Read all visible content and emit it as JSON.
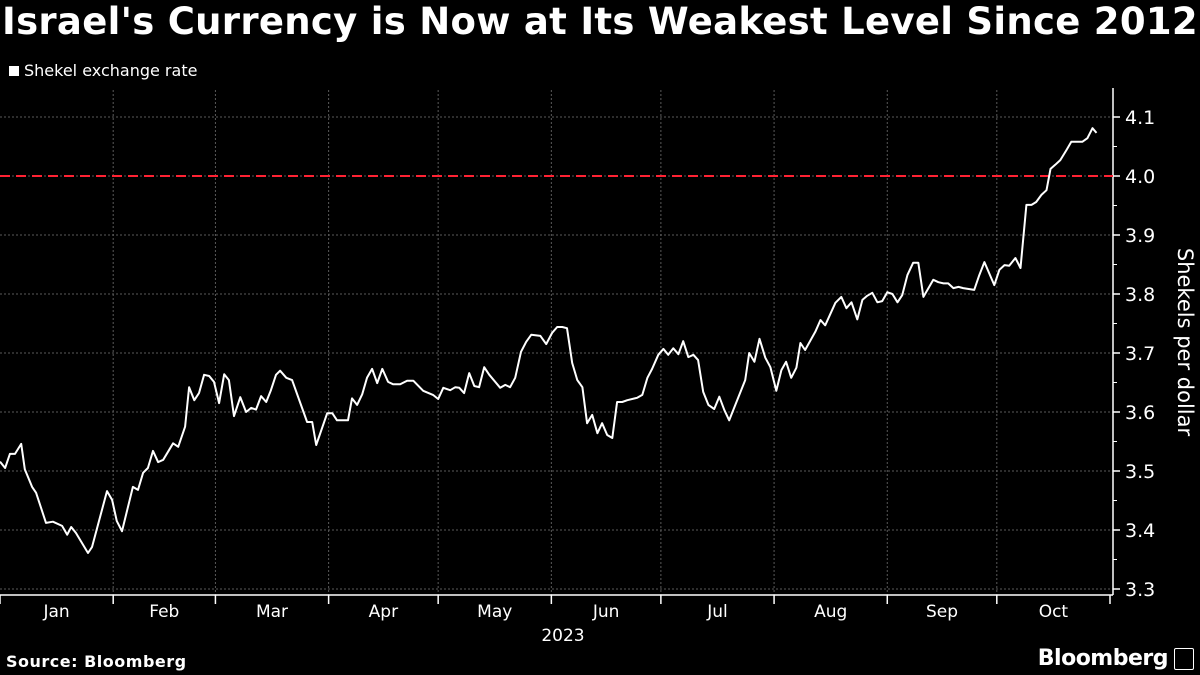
{
  "chart_data": {
    "type": "line",
    "title": "Israel's Currency is Now at Its Weakest Level Since 2012",
    "legend": [
      "Shekel exchange rate"
    ],
    "legend_placement": "top-left",
    "xlabel": "2023",
    "ylabel": "Shekels per dollar",
    "x_unit": "days since Jan 1 2023",
    "xlim": [
      0,
      304
    ],
    "ylim": [
      3.3,
      4.12
    ],
    "yticks": [
      3.3,
      3.4,
      3.5,
      3.6,
      3.7,
      3.8,
      3.9,
      4.0,
      4.1
    ],
    "ytick_labels": [
      "3.3",
      "3.4",
      "3.5",
      "3.6",
      "3.7",
      "3.8",
      "3.9",
      "4.0",
      "4.1"
    ],
    "month_starts": [
      0,
      31,
      59,
      90,
      120,
      151,
      181,
      212,
      243,
      273,
      304
    ],
    "xtick_labels": [
      "Jan",
      "Feb",
      "Mar",
      "Apr",
      "May",
      "Jun",
      "Jul",
      "Aug",
      "Sep",
      "Oct"
    ],
    "reference_line": {
      "value": 4.0,
      "style": "dashed",
      "color": "#ff2233"
    },
    "grid": true,
    "series": [
      {
        "name": "Shekel exchange rate",
        "color": "#ffffff",
        "x": [
          0,
          1.4,
          2.7,
          4.1,
          5.8,
          6.8,
          8.8,
          9.9,
          12.6,
          14.5,
          17,
          18.4,
          19.5,
          20.8,
          24.1,
          25.2,
          29.3,
          30.7,
          32,
          33.4,
          36.4,
          37.8,
          39.2,
          40.5,
          41.9,
          43.3,
          44.7,
          47.4,
          48.8,
          50.7,
          51.8,
          53.2,
          54.5,
          55.9,
          57.3,
          58.6,
          60,
          61.4,
          62.7,
          64.1,
          65.8,
          67.4,
          68.8,
          70.1,
          71.5,
          72.9,
          74.2,
          75.6,
          76.7,
          78.4,
          80,
          84.1,
          85.5,
          86.6,
          89.6,
          91,
          92.3,
          95.3,
          96.4,
          97.8,
          99.2,
          100.5,
          101.9,
          103.3,
          104.7,
          106.3,
          107.7,
          109.6,
          111.5,
          113.2,
          115.9,
          118.6,
          120,
          121.4,
          123.3,
          124.7,
          125.8,
          127.1,
          128.5,
          129.9,
          131.2,
          132.6,
          134,
          137,
          138.4,
          139.7,
          141.1,
          142.7,
          144.1,
          145.5,
          148,
          149.6,
          151.2,
          152.6,
          154,
          155.3,
          156.7,
          158.1,
          159.5,
          160.8,
          162.2,
          163.6,
          164.9,
          166.3,
          167.7,
          169,
          170.4,
          171.8,
          174.5,
          175.9,
          177.3,
          178.6,
          180.3,
          181.7,
          183,
          184.4,
          185.8,
          187.1,
          188.5,
          189.9,
          191.2,
          192.6,
          194,
          195.6,
          197,
          198.4,
          199.7,
          204.1,
          205.2,
          206.6,
          208,
          209.6,
          211,
          212.6,
          214,
          215.3,
          216.7,
          218.1,
          219.2,
          220.5,
          223.3,
          224.7,
          226,
          228.8,
          230.4,
          231.8,
          233.2,
          234.8,
          236.2,
          237.5,
          238.9,
          240.3,
          241.6,
          243,
          244.4,
          245.8,
          247.1,
          248.5,
          250.1,
          251.5,
          252.9,
          255.6,
          257,
          258.4,
          259.7,
          261.1,
          262.5,
          263.8,
          266.8,
          268.2,
          269.6,
          272.3,
          273.7,
          275.1,
          276.4,
          278.1,
          279.5,
          281.1,
          282.5,
          283.8,
          285.2,
          286.6,
          287.7,
          289,
          290.4,
          292.1,
          293.4,
          295.1,
          296.4,
          297.8,
          299.2,
          300.3
        ],
        "values": [
          3.516,
          3.505,
          3.529,
          3.529,
          3.546,
          3.503,
          3.473,
          3.463,
          3.412,
          3.414,
          3.407,
          3.392,
          3.405,
          3.395,
          3.361,
          3.371,
          3.466,
          3.451,
          3.415,
          3.398,
          3.473,
          3.468,
          3.497,
          3.505,
          3.534,
          3.515,
          3.519,
          3.547,
          3.541,
          3.575,
          3.642,
          3.62,
          3.632,
          3.663,
          3.661,
          3.651,
          3.615,
          3.664,
          3.654,
          3.593,
          3.625,
          3.6,
          3.607,
          3.604,
          3.627,
          3.617,
          3.637,
          3.663,
          3.67,
          3.658,
          3.654,
          3.583,
          3.583,
          3.544,
          3.598,
          3.598,
          3.586,
          3.586,
          3.623,
          3.612,
          3.63,
          3.658,
          3.673,
          3.649,
          3.673,
          3.651,
          3.647,
          3.647,
          3.653,
          3.653,
          3.636,
          3.629,
          3.622,
          3.641,
          3.637,
          3.642,
          3.641,
          3.632,
          3.666,
          3.644,
          3.642,
          3.676,
          3.663,
          3.641,
          3.646,
          3.642,
          3.658,
          3.702,
          3.719,
          3.731,
          3.729,
          3.715,
          3.734,
          3.744,
          3.744,
          3.742,
          3.683,
          3.654,
          3.642,
          3.581,
          3.595,
          3.564,
          3.581,
          3.561,
          3.556,
          3.617,
          3.617,
          3.62,
          3.624,
          3.629,
          3.658,
          3.673,
          3.697,
          3.707,
          3.697,
          3.708,
          3.698,
          3.72,
          3.693,
          3.697,
          3.688,
          3.634,
          3.612,
          3.605,
          3.626,
          3.603,
          3.586,
          3.654,
          3.7,
          3.685,
          3.724,
          3.692,
          3.676,
          3.636,
          3.671,
          3.685,
          3.658,
          3.675,
          3.717,
          3.705,
          3.736,
          3.756,
          3.747,
          3.785,
          3.795,
          3.776,
          3.786,
          3.757,
          3.79,
          3.797,
          3.802,
          3.786,
          3.788,
          3.803,
          3.8,
          3.786,
          3.798,
          3.832,
          3.853,
          3.853,
          3.795,
          3.824,
          3.82,
          3.818,
          3.818,
          3.81,
          3.812,
          3.81,
          3.807,
          3.832,
          3.854,
          3.815,
          3.841,
          3.849,
          3.848,
          3.861,
          3.844,
          3.951,
          3.951,
          3.956,
          3.968,
          3.976,
          4.012,
          4.019,
          4.027,
          4.044,
          4.058,
          4.058,
          4.058,
          4.064,
          4.081,
          4.073
        ]
      }
    ],
    "source": "Source: Bloomberg"
  },
  "brand": "Bloomberg"
}
